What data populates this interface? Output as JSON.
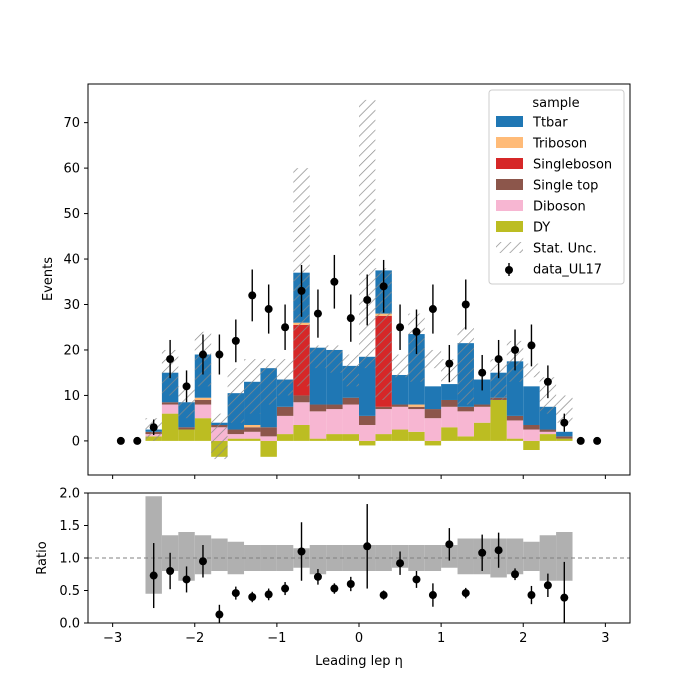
{
  "chart_data": [
    {
      "type": "bar",
      "subtype": "stacked-histogram",
      "ylabel": "Events",
      "xlim": [
        -3.3,
        3.3
      ],
      "ylim": [
        -7.5,
        78.5
      ],
      "yticks": [
        0,
        10,
        20,
        30,
        40,
        50,
        60,
        70
      ],
      "bin_edges": [
        -2.6,
        -2.4,
        -2.2,
        -2.0,
        -1.8,
        -1.6,
        -1.4,
        -1.2,
        -1.0,
        -0.8,
        -0.6,
        -0.4,
        -0.2,
        0.0,
        0.2,
        0.4,
        0.6,
        0.8,
        1.0,
        1.2,
        1.4,
        1.6,
        1.8,
        2.0,
        2.2,
        2.4,
        2.6
      ],
      "legend": {
        "title": "sample",
        "placement": "top-right"
      },
      "series": [
        {
          "name": "DY",
          "color": "#bcbd22",
          "values": [
            1.0,
            6.0,
            2.5,
            5.0,
            -3.5,
            0.5,
            0.5,
            -3.5,
            1.5,
            3.5,
            0.5,
            1.5,
            1.5,
            -1.0,
            1.5,
            2.5,
            2.0,
            -1.0,
            3.0,
            1.0,
            4.0,
            9.0,
            0.5,
            -2.0,
            1.5,
            0.5
          ]
        },
        {
          "name": "Diboson",
          "color": "#f7b6d2",
          "values": [
            0.5,
            2.0,
            0.0,
            3.0,
            3.0,
            1.0,
            1.5,
            1.0,
            4.0,
            5.0,
            6.0,
            5.5,
            6.5,
            3.5,
            5.5,
            5.0,
            5.0,
            5.0,
            4.5,
            5.5,
            3.5,
            0.0,
            4.0,
            2.5,
            0.5,
            0.0
          ]
        },
        {
          "name": "Single top",
          "color": "#8c564b",
          "values": [
            0.5,
            0.5,
            0.5,
            1.0,
            0.5,
            1.0,
            1.0,
            2.0,
            2.0,
            1.5,
            1.5,
            1.0,
            1.5,
            2.0,
            0.5,
            0.5,
            0.5,
            2.0,
            1.5,
            1.0,
            0.5,
            0.5,
            1.0,
            1.0,
            0.5,
            0.5
          ]
        },
        {
          "name": "Singleboson",
          "color": "#d62728",
          "values": [
            0,
            0,
            0,
            0,
            0,
            0,
            0,
            0,
            0,
            15.5,
            0,
            0,
            0,
            0,
            20.0,
            0,
            0,
            0,
            0,
            0,
            0,
            0,
            0,
            0,
            0,
            0
          ]
        },
        {
          "name": "Triboson",
          "color": "#ffbb78",
          "values": [
            0,
            0,
            0,
            0.5,
            0,
            0,
            0.5,
            0,
            0,
            0.5,
            0,
            0,
            0,
            0,
            0.5,
            0,
            0.5,
            0,
            0,
            0,
            0,
            0,
            0,
            0,
            0,
            0
          ]
        },
        {
          "name": "Ttbar",
          "color": "#1f77b4",
          "values": [
            0.5,
            6.5,
            5.5,
            9.5,
            0.5,
            8.0,
            9.5,
            13.0,
            6.0,
            11.0,
            12.5,
            12.0,
            7.0,
            13.0,
            9.5,
            6.5,
            15.5,
            5.0,
            3.5,
            14.0,
            5.5,
            5.5,
            12.0,
            8.5,
            5.0,
            1.0
          ]
        }
      ],
      "stat_unc": {
        "name": "Stat. Unc.",
        "low": [
          0,
          10,
          5,
          12,
          -4,
          4,
          6,
          8,
          10,
          12,
          16,
          15,
          12,
          16,
          9,
          14,
          13,
          16,
          13,
          8,
          14,
          9,
          13,
          14,
          6,
          4
        ],
        "high": [
          5,
          20,
          12,
          24,
          6,
          16,
          18,
          18,
          18,
          60,
          21,
          21,
          19,
          75,
          38,
          19,
          28,
          20,
          18,
          25,
          14,
          18,
          22,
          17,
          14,
          10
        ]
      },
      "data": {
        "name": "data_UL17",
        "x": [
          -2.9,
          -2.7,
          -2.5,
          -2.3,
          -2.1,
          -1.9,
          -1.7,
          -1.5,
          -1.3,
          -1.1,
          -0.9,
          -0.7,
          -0.5,
          -0.3,
          -0.1,
          0.1,
          0.3,
          0.5,
          0.7,
          0.9,
          1.1,
          1.3,
          1.5,
          1.7,
          1.9,
          2.1,
          2.3,
          2.5,
          2.7,
          2.9
        ],
        "y": [
          0,
          0,
          3,
          18,
          12,
          19,
          19,
          22,
          32,
          29,
          25,
          33,
          28,
          35,
          27,
          31,
          34,
          25,
          24,
          29,
          17,
          30,
          15,
          18,
          20,
          21,
          13,
          4,
          0,
          0
        ],
        "yerr": [
          0,
          0,
          1.7,
          4.2,
          3.5,
          4.4,
          4.4,
          4.7,
          5.7,
          5.4,
          5.0,
          5.7,
          5.3,
          5.9,
          5.2,
          5.6,
          5.8,
          5.0,
          4.9,
          5.4,
          4.1,
          5.5,
          3.9,
          4.2,
          4.5,
          4.6,
          3.6,
          2.0,
          0,
          0
        ]
      }
    },
    {
      "type": "scatter",
      "subtype": "ratio",
      "xlabel": "Leading lep η",
      "ylabel": "Ratio",
      "xlim": [
        -3.3,
        3.3
      ],
      "ylim": [
        0.0,
        2.0
      ],
      "yticks": [
        "0.0",
        "0.5",
        "1.0",
        "1.5",
        "2.0"
      ],
      "xticks": [
        "−3",
        "−2",
        "−1",
        "0",
        "1",
        "2",
        "3"
      ],
      "xtick_values": [
        -3,
        -2,
        -1,
        0,
        1,
        2,
        3
      ],
      "reference_line": 1.0,
      "unc_band": {
        "low": [
          0.45,
          0.8,
          0.65,
          0.75,
          0.8,
          0.75,
          0.8,
          0.8,
          0.8,
          0.85,
          0.75,
          0.8,
          0.8,
          0.8,
          0.8,
          0.85,
          0.8,
          0.8,
          0.85,
          0.75,
          0.75,
          0.7,
          0.75,
          0.8,
          0.65,
          0.65
        ],
        "high": [
          1.95,
          1.35,
          1.4,
          1.35,
          1.3,
          1.25,
          1.2,
          1.2,
          1.2,
          1.15,
          1.2,
          1.2,
          1.2,
          1.2,
          1.2,
          1.2,
          1.2,
          1.2,
          1.2,
          1.3,
          1.3,
          1.3,
          1.3,
          1.25,
          1.35,
          1.4
        ]
      },
      "points": {
        "x": [
          -2.5,
          -2.3,
          -2.1,
          -1.9,
          -1.7,
          -1.5,
          -1.3,
          -1.1,
          -0.9,
          -0.7,
          -0.5,
          -0.3,
          -0.1,
          0.1,
          0.3,
          0.5,
          0.7,
          0.9,
          1.1,
          1.3,
          1.5,
          1.7,
          1.9,
          2.1,
          2.3,
          2.5
        ],
        "y": [
          0.73,
          0.8,
          0.67,
          0.95,
          0.13,
          0.46,
          0.4,
          0.44,
          0.53,
          1.1,
          0.71,
          0.53,
          0.6,
          1.18,
          0.43,
          0.92,
          0.67,
          0.43,
          1.21,
          0.46,
          1.08,
          1.12,
          0.75,
          0.43,
          0.58,
          0.39
        ],
        "yerr": [
          0.5,
          0.28,
          0.2,
          0.25,
          0.15,
          0.1,
          0.08,
          0.09,
          0.1,
          0.45,
          0.12,
          0.08,
          0.11,
          0.65,
          0.07,
          0.18,
          0.13,
          0.18,
          0.25,
          0.08,
          0.28,
          0.27,
          0.09,
          0.14,
          0.18,
          0.55
        ]
      }
    }
  ]
}
